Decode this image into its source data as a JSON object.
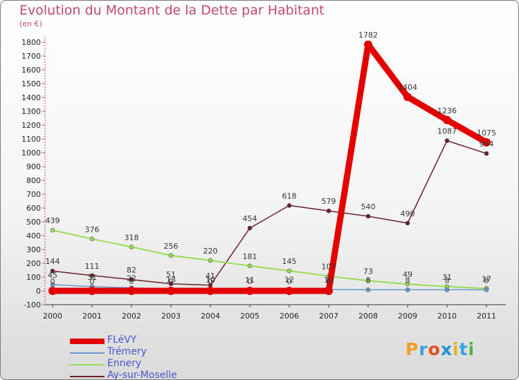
{
  "title": "Evolution du Montant de la Dette par Habitant",
  "subtitle": "(en €)",
  "logo": "Proxiti",
  "chart_data": {
    "type": "line",
    "categories": [
      "2000",
      "2001",
      "2002",
      "2003",
      "2004",
      "2005",
      "2006",
      "2007",
      "2008",
      "2009",
      "2010",
      "2011"
    ],
    "ylim": [
      -100,
      1800
    ],
    "yticks": [
      -100,
      0,
      100,
      200,
      300,
      400,
      500,
      600,
      700,
      800,
      900,
      1000,
      1100,
      1200,
      1300,
      1400,
      1500,
      1600,
      1700,
      1800
    ],
    "grid": false,
    "legend_position": "bottom-left",
    "series": [
      {
        "name": "FLéVY",
        "color": "#e30000",
        "values": [
          0,
          0,
          0,
          0,
          0,
          0,
          0,
          0,
          1782,
          1404,
          1236,
          1075
        ]
      },
      {
        "name": "Trémery",
        "color": "#6699cc",
        "values": [
          45,
          31,
          22,
          13,
          10,
          11,
          12,
          10,
          8,
          8,
          8,
          8
        ]
      },
      {
        "name": "Ennery",
        "color": "#99dd55",
        "values": [
          439,
          376,
          318,
          256,
          220,
          181,
          145,
          107,
          73,
          49,
          31,
          17
        ]
      },
      {
        "name": "Ay-sur-Moselle",
        "color": "#6b1f2a",
        "values": [
          144,
          111,
          82,
          51,
          41,
          454,
          618,
          579,
          540,
          490,
          1087,
          994
        ]
      }
    ]
  }
}
